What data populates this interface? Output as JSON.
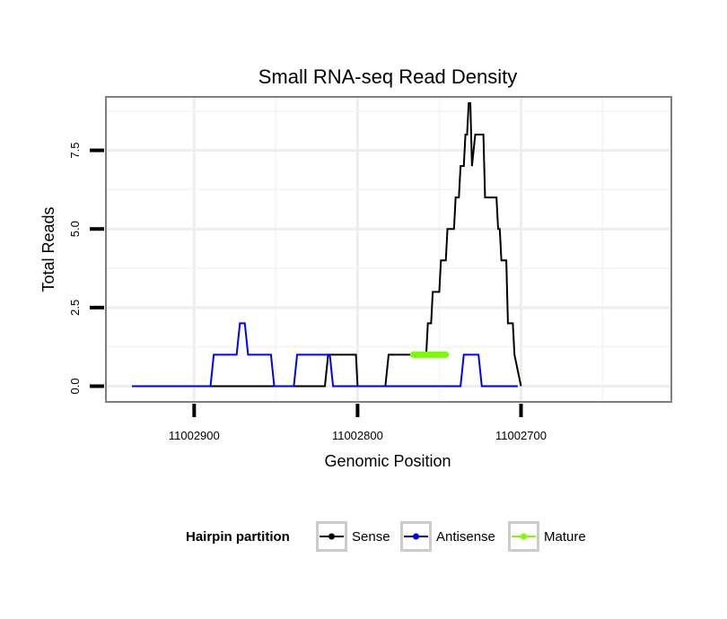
{
  "chart_data": {
    "type": "line",
    "title": "Small RNA-seq Read Density",
    "xlabel": "Genomic Position",
    "ylabel": "Total Reads",
    "x_reversed": true,
    "xlim": [
      11002954,
      11002608
    ],
    "ylim": [
      -0.5,
      9.2
    ],
    "x_ticks": [
      11002900,
      11002800,
      11002700
    ],
    "x_tick_labels": [
      "11002900",
      "11002800",
      "11002700"
    ],
    "y_ticks": [
      0,
      2.5,
      5,
      7.5
    ],
    "y_tick_labels": [
      "0.0",
      "2.5",
      "5.0",
      "7.5"
    ],
    "grid": true,
    "legend": {
      "title": "Hairpin partition",
      "position": "bottom",
      "entries": [
        "Sense",
        "Antisense",
        "Mature"
      ]
    },
    "series": [
      {
        "name": "Sense",
        "color": "#000000",
        "x": [
          11002938,
          11002820,
          11002818,
          11002801,
          11002800,
          11002783,
          11002781,
          11002758,
          11002757,
          11002755,
          11002754,
          11002750,
          11002749,
          11002746,
          11002745,
          11002741,
          11002740,
          11002738,
          11002737,
          11002735,
          11002734,
          11002733,
          11002732,
          11002731,
          11002730,
          11002728,
          11002727,
          11002723,
          11002722,
          11002715,
          11002714,
          11002713,
          11002712,
          11002709,
          11002708,
          11002705,
          11002704,
          11002700
        ],
        "y": [
          0,
          0,
          1,
          1,
          0,
          0,
          1,
          1,
          2,
          2,
          3,
          3,
          4,
          4,
          5,
          5,
          6,
          6,
          7,
          7,
          8,
          8,
          9,
          9,
          7,
          8,
          8,
          8,
          6,
          6,
          5,
          5,
          4,
          4,
          2,
          2,
          1,
          0
        ]
      },
      {
        "name": "Antisense",
        "color": "#0000ff",
        "x": [
          11002938,
          11002890,
          11002888,
          11002874,
          11002872,
          11002869,
          11002867,
          11002853,
          11002851,
          11002839,
          11002837,
          11002817,
          11002815,
          11002737,
          11002735,
          11002726,
          11002724,
          11002702
        ],
        "y": [
          0,
          0,
          1,
          1,
          2,
          2,
          1,
          1,
          0,
          0,
          1,
          1,
          0,
          0,
          1,
          1,
          0,
          0
        ]
      },
      {
        "name": "Mature",
        "color": "#7cfc00",
        "x": [
          11002766,
          11002746
        ],
        "y": [
          1,
          1
        ]
      }
    ]
  }
}
